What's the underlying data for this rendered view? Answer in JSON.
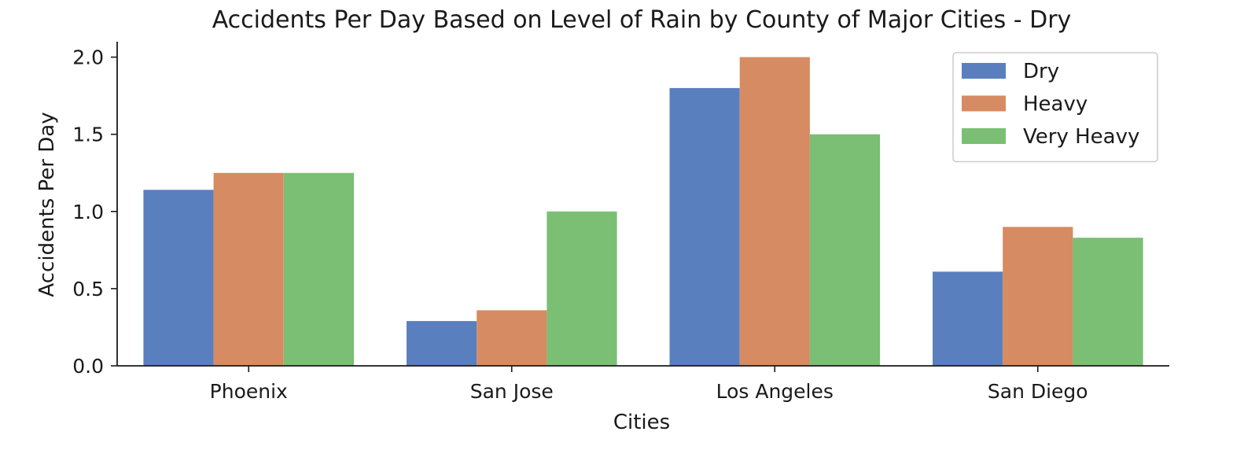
{
  "chart_data": {
    "type": "bar",
    "title": "Accidents Per Day Based on Level of Rain by County of Major Cities - Dry",
    "xlabel": "Cities",
    "ylabel": "Accidents Per Day",
    "categories": [
      "Phoenix",
      "San Jose",
      "Los Angeles",
      "San Diego"
    ],
    "series": [
      {
        "name": "Dry",
        "color": "#5a7fbf",
        "values": [
          1.14,
          0.29,
          1.8,
          0.61
        ]
      },
      {
        "name": "Heavy",
        "color": "#d68b62",
        "values": [
          1.25,
          0.36,
          2.0,
          0.9
        ]
      },
      {
        "name": "Very Heavy",
        "color": "#7abf74",
        "values": [
          1.25,
          1.0,
          1.5,
          0.83
        ]
      }
    ],
    "ylim": [
      0,
      2.1
    ],
    "yticks": [
      "0.0",
      "0.5",
      "1.0",
      "1.5",
      "2.0"
    ],
    "grid": false,
    "legend": "top-right"
  }
}
